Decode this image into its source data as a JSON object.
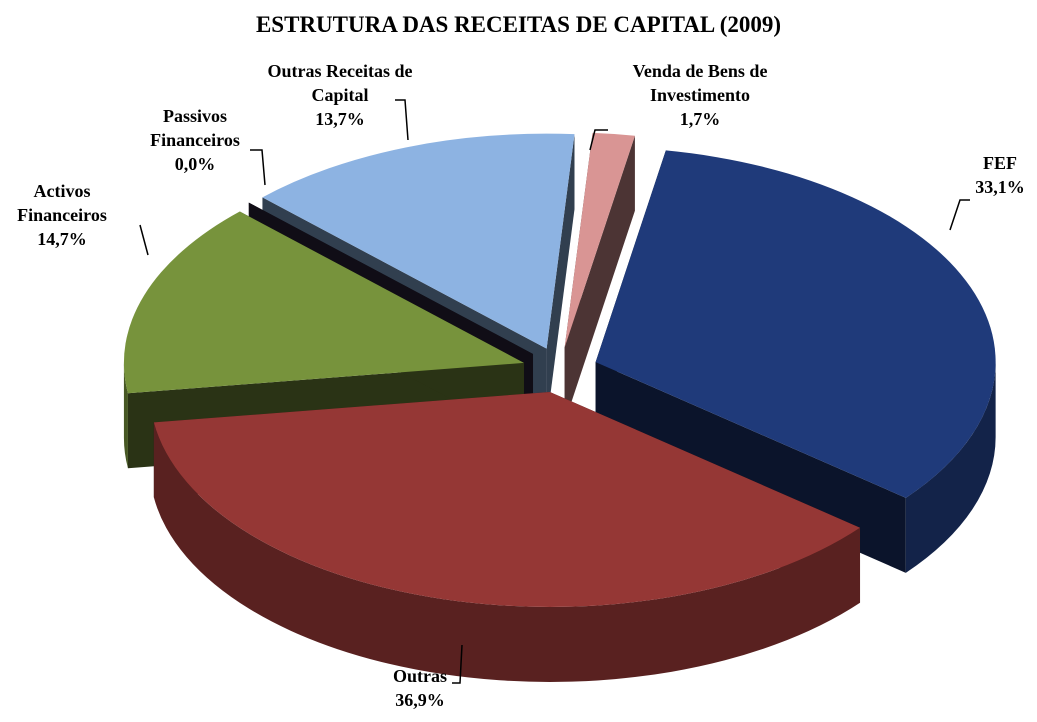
{
  "chart_data": {
    "type": "pie3d",
    "title": "ESTRUTURA DAS RECEITAS DE CAPITAL (2009)",
    "categories": [
      "Venda de Bens de Investimento",
      "FEF",
      "Outras",
      "Activos Financeiros",
      "Passivos Financeiros",
      "Outras Receitas de Capital"
    ],
    "values": [
      1.7,
      33.1,
      36.9,
      14.7,
      0.0,
      13.7
    ],
    "value_labels": [
      "1,7%",
      "33,1%",
      "36,9%",
      "14,7%",
      "0,0%",
      "13,7%"
    ],
    "colors": [
      "#d99594",
      "#1f3a7a",
      "#953735",
      "#77933c",
      "#2e2440",
      "#8db3e2"
    ]
  }
}
